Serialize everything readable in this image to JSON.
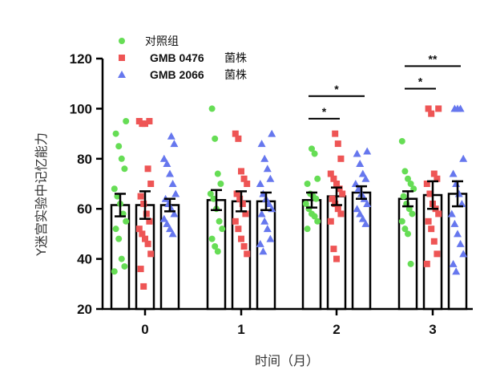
{
  "chart_data": {
    "type": "bar",
    "title": "",
    "xlabel": "时间（月）",
    "ylabel": "Y迷宫实验中记忆能力",
    "ylim": [
      20,
      120
    ],
    "yticks": [
      20,
      40,
      60,
      80,
      100,
      120
    ],
    "categories": [
      "0",
      "1",
      "2",
      "3"
    ],
    "legend_position": "top-left",
    "series": [
      {
        "name": "对照组",
        "legend_parts": [
          "对照组"
        ],
        "marker": "circle",
        "color": "#66dd55",
        "means": [
          61.5,
          63.5,
          63.5,
          64.0
        ],
        "errors": [
          4.5,
          4.0,
          3.0,
          3.0
        ],
        "points": [
          [
            35,
            37,
            40,
            48,
            52,
            55,
            58,
            62,
            65,
            68,
            76,
            80,
            85,
            90,
            95
          ],
          [
            43,
            45,
            48,
            52,
            55,
            60,
            64,
            66,
            70,
            74,
            88,
            100
          ],
          [
            52,
            55,
            57,
            58,
            60,
            62,
            64,
            65,
            66,
            70,
            72,
            82,
            84
          ],
          [
            38,
            50,
            52,
            55,
            58,
            60,
            62,
            65,
            68,
            70,
            72,
            75,
            87
          ]
        ]
      },
      {
        "name": "GMB 0476 菌株",
        "legend_parts": [
          "GMB 0476",
          "菌株"
        ],
        "marker": "square",
        "color": "#ee5555",
        "means": [
          61.5,
          63.0,
          65.0,
          65.5
        ],
        "errors": [
          5.5,
          4.0,
          3.5,
          5.5
        ],
        "points": [
          [
            29,
            36,
            42,
            46,
            48,
            50,
            52,
            55,
            58,
            62,
            65,
            70,
            76,
            94,
            94,
            95,
            95
          ],
          [
            42,
            45,
            48,
            52,
            55,
            58,
            62,
            64,
            66,
            70,
            72,
            75,
            88,
            90
          ],
          [
            40,
            44,
            55,
            58,
            60,
            62,
            64,
            66,
            68,
            70,
            72,
            74,
            80,
            86,
            90
          ],
          [
            38,
            42,
            47,
            52,
            55,
            58,
            60,
            62,
            66,
            70,
            72,
            74,
            98,
            100,
            100
          ]
        ]
      },
      {
        "name": "GMB 2066 菌株",
        "legend_parts": [
          "GMB 2066",
          "菌株"
        ],
        "marker": "triangle",
        "color": "#6677ee",
        "means": [
          61.5,
          63.0,
          66.5,
          66.0
        ],
        "errors": [
          2.5,
          3.5,
          2.5,
          5.0
        ],
        "points": [
          [
            50,
            52,
            54,
            56,
            58,
            60,
            62,
            64,
            66,
            70,
            74,
            78,
            80,
            86,
            89
          ],
          [
            43,
            46,
            48,
            52,
            55,
            58,
            60,
            62,
            64,
            66,
            70,
            72,
            76,
            80,
            86,
            90
          ],
          [
            54,
            56,
            58,
            60,
            62,
            64,
            66,
            68,
            70,
            72,
            74,
            78,
            82,
            83
          ],
          [
            35,
            38,
            42,
            46,
            50,
            54,
            58,
            62,
            66,
            70,
            74,
            80,
            100,
            100,
            100
          ]
        ]
      }
    ],
    "significance": [
      {
        "category": "2",
        "from": 0,
        "to": 1,
        "label": "*",
        "y": 96
      },
      {
        "category": "2",
        "from": 0,
        "to": 2,
        "label": "*",
        "y": 105
      },
      {
        "category": "3",
        "from": 0,
        "to": 1,
        "label": "*",
        "y": 108
      },
      {
        "category": "3",
        "from": 0,
        "to": 2,
        "label": "**",
        "y": 117
      }
    ]
  }
}
